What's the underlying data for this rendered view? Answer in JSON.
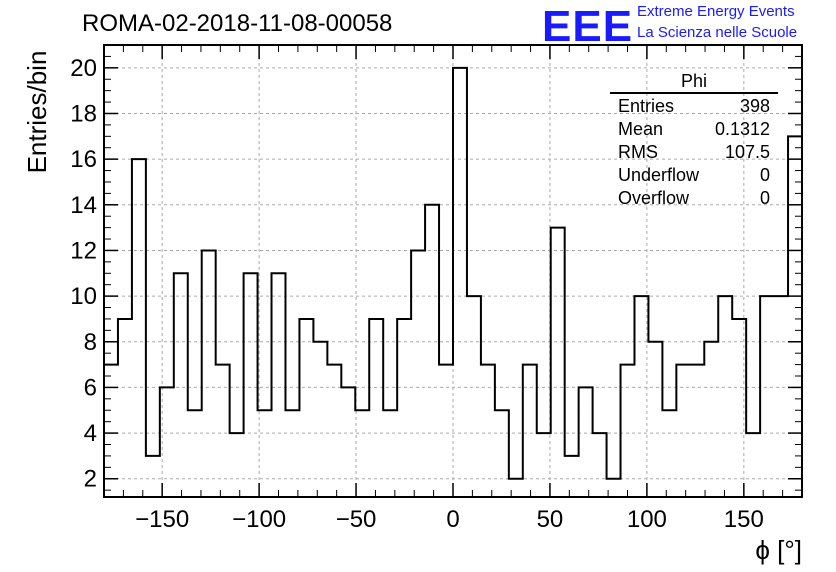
{
  "title": "ROMA-02-2018-11-08-00058",
  "logo": {
    "mark": "EEE",
    "line1": "Extreme Energy Events",
    "line2": "La Scienza nelle Scuole",
    "color": "#1a1aff"
  },
  "stats_box": {
    "name": "Phi",
    "rows": [
      {
        "label": "Entries",
        "value": "398"
      },
      {
        "label": "Mean",
        "value": "0.1312"
      },
      {
        "label": "RMS",
        "value": "107.5"
      },
      {
        "label": "Underflow",
        "value": "0"
      },
      {
        "label": "Overflow",
        "value": "0"
      }
    ]
  },
  "chart_data": {
    "type": "bar",
    "style": "step-histogram",
    "title": "ROMA-02-2018-11-08-00058",
    "xlabel": "ϕ [°]",
    "ylabel": "Entries/bin",
    "xlim": [
      -180,
      180
    ],
    "ylim": [
      1.2,
      21
    ],
    "bin_width": 7.2,
    "x_ticks": [
      -150,
      -100,
      -50,
      0,
      50,
      100,
      150
    ],
    "x_tick_labels": [
      "−150",
      "−100",
      "−50",
      "0",
      "50",
      "100",
      "150"
    ],
    "y_ticks": [
      2,
      4,
      6,
      8,
      10,
      12,
      14,
      16,
      18,
      20
    ],
    "grid": true,
    "values": [
      7,
      9,
      16,
      3,
      6,
      11,
      5,
      12,
      7,
      4,
      11,
      5,
      11,
      5,
      9,
      8,
      7,
      6,
      5,
      9,
      5,
      9,
      12,
      14,
      7,
      20,
      10,
      7,
      5,
      2,
      7,
      4,
      13,
      3,
      6,
      4,
      2,
      7,
      10,
      8,
      5,
      7,
      7,
      8,
      10,
      9,
      4,
      10,
      10,
      17
    ]
  }
}
